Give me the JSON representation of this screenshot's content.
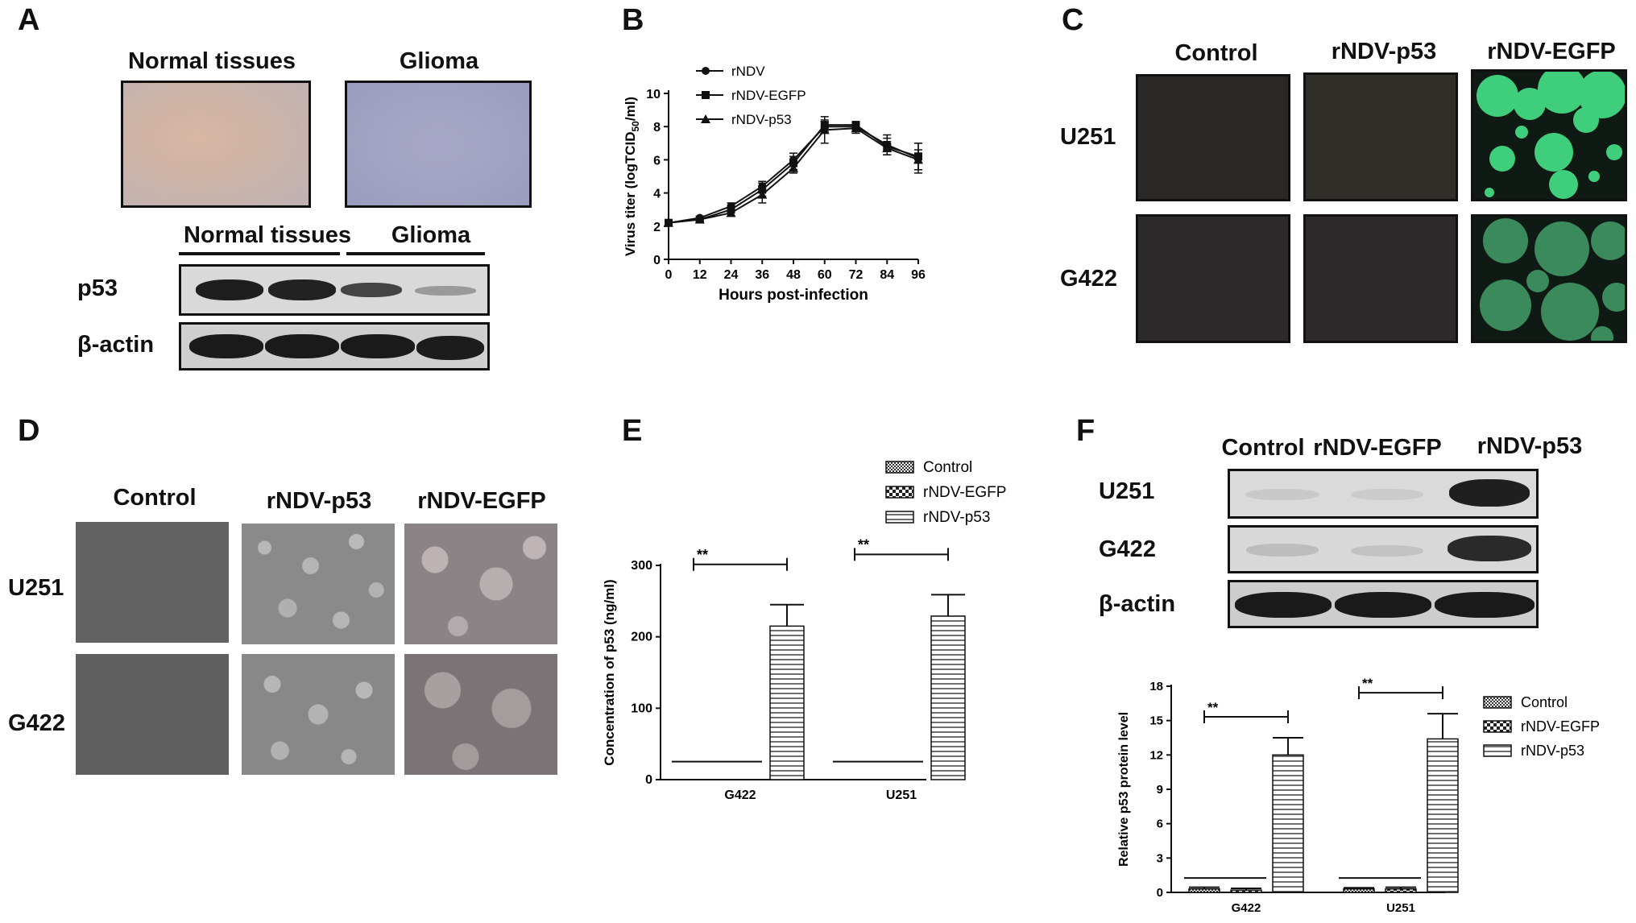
{
  "panels": {
    "A": {
      "label": "A",
      "ihc_headers": [
        "Normal tissues",
        "Glioma"
      ],
      "wb_headers": [
        "Normal tissues",
        "Glioma"
      ],
      "wb_rows": [
        "p53",
        "β-actin"
      ]
    },
    "B": {
      "label": "B",
      "chart_data": {
        "type": "line",
        "title": "",
        "xlabel": "Hours post-infection",
        "ylabel_main": "Virus titer (logTCID",
        "ylabel_sub": "50",
        "ylabel_tail": "/ml)",
        "x": [
          0,
          12,
          24,
          36,
          48,
          60,
          72,
          84,
          96
        ],
        "xlim": [
          0,
          96
        ],
        "ylim": [
          0,
          10
        ],
        "yticks": [
          0,
          2,
          4,
          6,
          8,
          10
        ],
        "series": [
          {
            "name": "rNDV",
            "marker": "circle",
            "values": [
              2.2,
              2.5,
              3.2,
              4.4,
              6.0,
              8.0,
              8.0,
              6.9,
              6.1
            ],
            "err": [
              0.1,
              0.1,
              0.2,
              0.3,
              0.4,
              0.3,
              0.2,
              0.6,
              0.9
            ]
          },
          {
            "name": "rNDV-EGFP",
            "marker": "square",
            "values": [
              2.2,
              2.4,
              3.0,
              4.2,
              5.8,
              8.1,
              8.1,
              6.8,
              6.2
            ],
            "err": [
              0.1,
              0.1,
              0.2,
              0.4,
              0.4,
              0.3,
              0.2,
              0.5,
              0.8
            ]
          },
          {
            "name": "rNDV-p53",
            "marker": "triangle",
            "values": [
              2.2,
              2.4,
              2.8,
              3.9,
              5.5,
              7.8,
              7.9,
              6.7,
              6.0
            ],
            "err": [
              0.1,
              0.1,
              0.2,
              0.5,
              0.3,
              0.8,
              0.3,
              0.4,
              0.6
            ]
          }
        ]
      }
    },
    "C": {
      "label": "C",
      "col_headers": [
        "Control",
        "rNDV-p53",
        "rNDV-EGFP"
      ],
      "row_headers": [
        "U251",
        "G422"
      ]
    },
    "D": {
      "label": "D",
      "col_headers": [
        "Control",
        "rNDV-p53",
        "rNDV-EGFP"
      ],
      "row_headers": [
        "U251",
        "G422"
      ]
    },
    "E": {
      "label": "E",
      "chart_data": {
        "type": "bar",
        "title": "",
        "xlabel": "",
        "ylabel": "Concentration of p53 (ng/ml)",
        "categories": [
          "G422",
          "U251"
        ],
        "ylim": [
          0,
          300
        ],
        "yticks": [
          0,
          100,
          200,
          300
        ],
        "series": [
          {
            "name": "Control",
            "pattern": "dots",
            "values": [
              0,
              0
            ],
            "err": [
              0,
              0
            ]
          },
          {
            "name": "rNDV-EGFP",
            "pattern": "checker",
            "values": [
              0,
              0
            ],
            "err": [
              0,
              0
            ]
          },
          {
            "name": "rNDV-p53",
            "pattern": "hlines",
            "values": [
              215,
              229
            ],
            "err": [
              30,
              30
            ]
          }
        ],
        "significance": [
          "**",
          "**"
        ]
      }
    },
    "F": {
      "label": "F",
      "wb_col_headers": [
        "Control",
        "rNDV-EGFP",
        "rNDV-p53"
      ],
      "wb_rows": [
        "U251",
        "G422",
        "β-actin"
      ],
      "chart_data": {
        "type": "bar",
        "title": "",
        "xlabel": "",
        "ylabel": "Relative p53 protein level",
        "categories": [
          "G422",
          "U251"
        ],
        "ylim": [
          0,
          18
        ],
        "yticks": [
          0,
          3,
          6,
          9,
          12,
          15,
          18
        ],
        "series": [
          {
            "name": "Control",
            "pattern": "dots",
            "values": [
              0.3,
              0.3
            ],
            "err": [
              0.15,
              0.1
            ]
          },
          {
            "name": "rNDV-EGFP",
            "pattern": "checker",
            "values": [
              0.2,
              0.3
            ],
            "err": [
              0.15,
              0.15
            ]
          },
          {
            "name": "rNDV-p53",
            "pattern": "hlines",
            "values": [
              12.0,
              13.4
            ],
            "err": [
              1.5,
              2.2
            ]
          }
        ],
        "significance": [
          "**",
          "**"
        ]
      }
    }
  },
  "colors": {
    "ink": "#111111",
    "egfp_green": "#3fcf7c",
    "dark_micro": "#2b2a28"
  }
}
